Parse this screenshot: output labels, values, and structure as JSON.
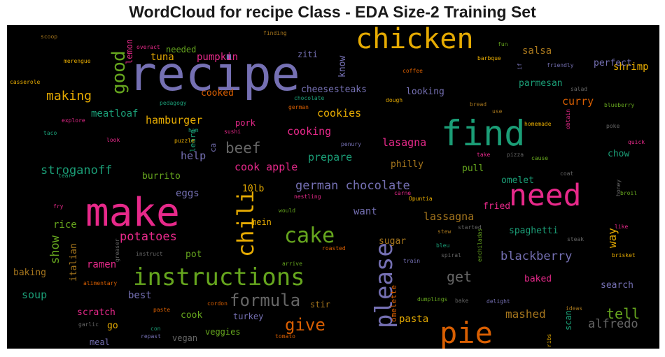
{
  "chart_data": {
    "type": "wordcloud",
    "title": "WordCloud for recipe Class - EDA Size-2 Training Set",
    "background": "#000000",
    "palette": [
      "#7570b3",
      "#1b9e77",
      "#d95f02",
      "#e7298a",
      "#66a61e",
      "#e6ab02",
      "#a6761d",
      "#666666"
    ],
    "words": [
      {
        "text": "recipe",
        "color": "#7570b3"
      },
      {
        "text": "make",
        "color": "#e7298a"
      },
      {
        "text": "find",
        "color": "#1b9e77"
      },
      {
        "text": "chicken",
        "color": "#e6ab02"
      },
      {
        "text": "need",
        "color": "#e7298a"
      },
      {
        "text": "instructions",
        "color": "#66a61e"
      },
      {
        "text": "please",
        "color": "#7570b3"
      },
      {
        "text": "pie",
        "color": "#d95f02"
      },
      {
        "text": "chili",
        "color": "#e6ab02"
      },
      {
        "text": "cake",
        "color": "#66a61e"
      },
      {
        "text": "good",
        "color": "#66a61e"
      },
      {
        "text": "formula",
        "color": "#666666"
      },
      {
        "text": "give",
        "color": "#d95f02"
      },
      {
        "text": "beef",
        "color": "#666666"
      },
      {
        "text": "get",
        "color": "#666666"
      },
      {
        "text": "making",
        "color": "#e6ab02"
      },
      {
        "text": "tell",
        "color": "#66a61e"
      },
      {
        "text": "stroganoff",
        "color": "#1b9e77"
      },
      {
        "text": "german chocolate",
        "color": "#7570b3"
      },
      {
        "text": "potatoes",
        "color": "#e7298a"
      },
      {
        "text": "blackberry",
        "color": "#7570b3"
      },
      {
        "text": "alfredo",
        "color": "#666666"
      },
      {
        "text": "mashed",
        "color": "#a6761d"
      },
      {
        "text": "show",
        "color": "#66a61e"
      },
      {
        "text": "way",
        "color": "#e6ab02"
      },
      {
        "text": "cookies",
        "color": "#e6ab02"
      },
      {
        "text": "cooking",
        "color": "#e7298a"
      },
      {
        "text": "prepare",
        "color": "#1b9e77"
      },
      {
        "text": "lasagna",
        "color": "#e7298a"
      },
      {
        "text": "lassagna",
        "color": "#a6761d"
      },
      {
        "text": "cook apple",
        "color": "#e7298a"
      },
      {
        "text": "hamburger",
        "color": "#e6ab02"
      },
      {
        "text": "meatloaf",
        "color": "#1b9e77"
      },
      {
        "text": "curry",
        "color": "#d95f02"
      },
      {
        "text": "want",
        "color": "#7570b3"
      },
      {
        "text": "pasta",
        "color": "#e6ab02"
      },
      {
        "text": "soup",
        "color": "#1b9e77"
      },
      {
        "text": "ramen",
        "color": "#e7298a"
      },
      {
        "text": "best",
        "color": "#7570b3"
      },
      {
        "text": "tuna",
        "color": "#e6ab02"
      },
      {
        "text": "pumpkin",
        "color": "#e7298a"
      },
      {
        "text": "salsa",
        "color": "#a6761d"
      },
      {
        "text": "shrimp",
        "color": "#e6ab02"
      },
      {
        "text": "know",
        "color": "#7570b3"
      },
      {
        "text": "help",
        "color": "#7570b3"
      },
      {
        "text": "eggs",
        "color": "#7570b3"
      },
      {
        "text": "rice",
        "color": "#66a61e"
      },
      {
        "text": "spaghetti",
        "color": "#1b9e77"
      },
      {
        "text": "baked",
        "color": "#e7298a"
      },
      {
        "text": "search",
        "color": "#7570b3"
      },
      {
        "text": "fried",
        "color": "#e7298a"
      },
      {
        "text": "omelet",
        "color": "#1b9e77"
      },
      {
        "text": "philly",
        "color": "#a6761d"
      },
      {
        "text": "pull",
        "color": "#66a61e"
      },
      {
        "text": "chow",
        "color": "#1b9e77"
      },
      {
        "text": "cheesesteaks",
        "color": "#7570b3"
      },
      {
        "text": "looking",
        "color": "#7570b3"
      },
      {
        "text": "parmesan",
        "color": "#1b9e77"
      },
      {
        "text": "perfect",
        "color": "#7570b3"
      },
      {
        "text": "cooked",
        "color": "#d95f02"
      },
      {
        "text": "pork",
        "color": "#e7298a"
      },
      {
        "text": "learn",
        "color": "#1b9e77"
      },
      {
        "text": "ca",
        "color": "#7570b3"
      },
      {
        "text": "burrito",
        "color": "#66a61e"
      },
      {
        "text": "10lb",
        "color": "#e6ab02"
      },
      {
        "text": "mein",
        "color": "#e6ab02"
      },
      {
        "text": "sugar",
        "color": "#a6761d"
      },
      {
        "text": "pot",
        "color": "#66a61e"
      },
      {
        "text": "baking",
        "color": "#a6761d"
      },
      {
        "text": "italian",
        "color": "#a6761d"
      },
      {
        "text": "scratch",
        "color": "#e7298a"
      },
      {
        "text": "go",
        "color": "#e6ab02"
      },
      {
        "text": "meal",
        "color": "#7570b3"
      },
      {
        "text": "cook",
        "color": "#66a61e"
      },
      {
        "text": "vegan",
        "color": "#666666"
      },
      {
        "text": "veggies",
        "color": "#66a61e"
      },
      {
        "text": "turkey",
        "color": "#7570b3"
      },
      {
        "text": "stir",
        "color": "#a6761d"
      },
      {
        "text": "omelette",
        "color": "#d95f02"
      },
      {
        "text": "scan",
        "color": "#1b9e77"
      },
      {
        "text": "needed",
        "color": "#66a61e"
      },
      {
        "text": "lemon",
        "color": "#e7298a"
      },
      {
        "text": "ziti",
        "color": "#7570b3"
      },
      {
        "text": "finding",
        "color": "#a6761d"
      },
      {
        "text": "overact",
        "color": "#e7298a"
      },
      {
        "text": "scoop",
        "color": "#a6761d"
      },
      {
        "text": "merengue",
        "color": "#e6ab02"
      },
      {
        "text": "casserole",
        "color": "#e6ab02"
      },
      {
        "text": "fun",
        "color": "#66a61e"
      },
      {
        "text": "barbque",
        "color": "#e6ab02"
      },
      {
        "text": "if",
        "color": "#7570b3"
      },
      {
        "text": "friendly",
        "color": "#7570b3"
      },
      {
        "text": "coffee",
        "color": "#d95f02"
      },
      {
        "text": "salad",
        "color": "#666666"
      },
      {
        "text": "chocolate",
        "color": "#1b9e77"
      },
      {
        "text": "dough",
        "color": "#e6ab02"
      },
      {
        "text": "german",
        "color": "#d95f02"
      },
      {
        "text": "pedagogy",
        "color": "#1b9e77"
      },
      {
        "text": "bread",
        "color": "#a6761d"
      },
      {
        "text": "use",
        "color": "#a6761d"
      },
      {
        "text": "blueberry",
        "color": "#66a61e"
      },
      {
        "text": "explore",
        "color": "#e7298a"
      },
      {
        "text": "ham",
        "color": "#1b9e77"
      },
      {
        "text": "sushi",
        "color": "#e7298a"
      },
      {
        "text": "homemade",
        "color": "#e6ab02"
      },
      {
        "text": "obtain",
        "color": "#e7298a"
      },
      {
        "text": "poke",
        "color": "#666666"
      },
      {
        "text": "taco",
        "color": "#1b9e77"
      },
      {
        "text": "look",
        "color": "#e7298a"
      },
      {
        "text": "puzzle",
        "color": "#e6ab02"
      },
      {
        "text": "penury",
        "color": "#7570b3"
      },
      {
        "text": "quick",
        "color": "#e7298a"
      },
      {
        "text": "take",
        "color": "#e7298a"
      },
      {
        "text": "pizza",
        "color": "#666666"
      },
      {
        "text": "cause",
        "color": "#66a61e"
      },
      {
        "text": "coat",
        "color": "#666666"
      },
      {
        "text": "honey",
        "color": "#666666"
      },
      {
        "text": "broil",
        "color": "#66a61e"
      },
      {
        "text": "tear",
        "color": "#1b9e77"
      },
      {
        "text": "carne",
        "color": "#e7298a"
      },
      {
        "text": "Opuntia",
        "color": "#e6ab02"
      },
      {
        "text": "fry",
        "color": "#e7298a"
      },
      {
        "text": "nestling",
        "color": "#e7298a"
      },
      {
        "text": "would",
        "color": "#66a61e"
      },
      {
        "text": "like",
        "color": "#e7298a"
      },
      {
        "text": "stew",
        "color": "#a6761d"
      },
      {
        "text": "started",
        "color": "#666666"
      },
      {
        "text": "steak",
        "color": "#666666"
      },
      {
        "text": "bleu",
        "color": "#1b9e77"
      },
      {
        "text": "greaser",
        "color": "#666666"
      },
      {
        "text": "instruct",
        "color": "#666666"
      },
      {
        "text": "roasted",
        "color": "#d95f02"
      },
      {
        "text": "enchiladas",
        "color": "#66a61e"
      },
      {
        "text": "brisket",
        "color": "#e6ab02"
      },
      {
        "text": "spiral",
        "color": "#666666"
      },
      {
        "text": "arrive",
        "color": "#66a61e"
      },
      {
        "text": "train",
        "color": "#7570b3"
      },
      {
        "text": "alimentary",
        "color": "#d95f02"
      },
      {
        "text": "paste",
        "color": "#d95f02"
      },
      {
        "text": "cordon",
        "color": "#d95f02"
      },
      {
        "text": "garlic",
        "color": "#666666"
      },
      {
        "text": "dumplings",
        "color": "#66a61e"
      },
      {
        "text": "bake",
        "color": "#666666"
      },
      {
        "text": "delight",
        "color": "#7570b3"
      },
      {
        "text": "ideas",
        "color": "#a6761d"
      },
      {
        "text": "ribs",
        "color": "#e6ab02"
      },
      {
        "text": "con",
        "color": "#1b9e77"
      },
      {
        "text": "repast",
        "color": "#7570b3"
      },
      {
        "text": "tomato",
        "color": "#d95f02"
      }
    ]
  }
}
